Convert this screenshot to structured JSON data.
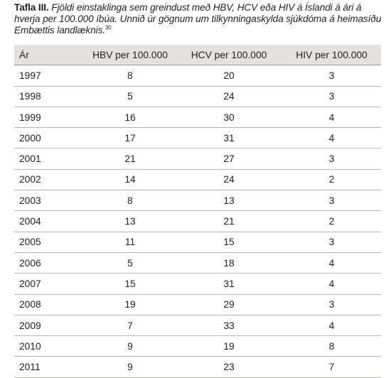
{
  "caption": {
    "label": "Tafla III.",
    "text": "Fjöldi einstaklinga sem greindust með HBV, HCV eða HIV á Íslandi á ári á hverja per 100.000 íbúa. Unnið úr gögnum um tilkynningaskylda sjúkdóma á heimasíðu Embættis landlæknis.",
    "footnote": "30"
  },
  "table": {
    "headers": [
      "Ár",
      "HBV per 100.000",
      "HCV per 100.000",
      "HIV per 100.000"
    ],
    "rows": [
      [
        "1997",
        "8",
        "20",
        "3"
      ],
      [
        "1998",
        "5",
        "24",
        "3"
      ],
      [
        "1999",
        "16",
        "30",
        "4"
      ],
      [
        "2000",
        "17",
        "31",
        "4"
      ],
      [
        "2001",
        "21",
        "27",
        "3"
      ],
      [
        "2002",
        "14",
        "24",
        "2"
      ],
      [
        "2003",
        "8",
        "13",
        "3"
      ],
      [
        "2004",
        "13",
        "21",
        "2"
      ],
      [
        "2005",
        "11",
        "15",
        "3"
      ],
      [
        "2006",
        "5",
        "18",
        "4"
      ],
      [
        "2007",
        "15",
        "31",
        "4"
      ],
      [
        "2008",
        "19",
        "29",
        "3"
      ],
      [
        "2009",
        "7",
        "33",
        "4"
      ],
      [
        "2010",
        "9",
        "19",
        "8"
      ],
      [
        "2011",
        "9",
        "23",
        "7"
      ]
    ]
  }
}
